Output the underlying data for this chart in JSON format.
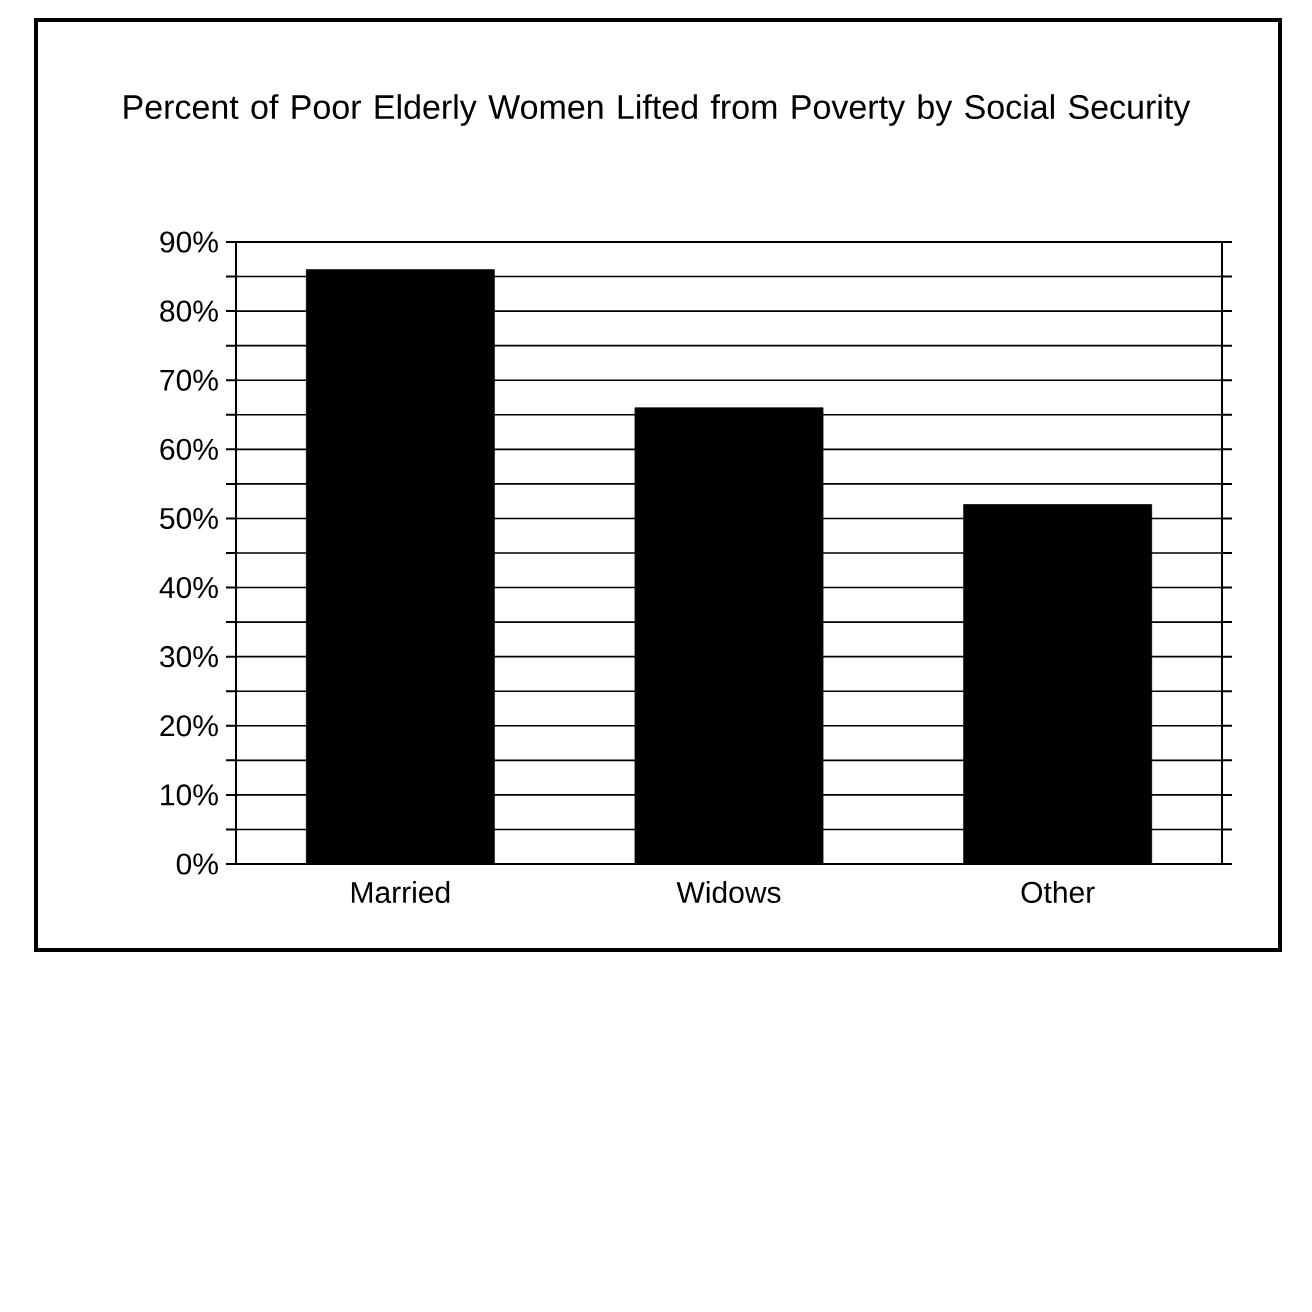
{
  "chart_data": {
    "type": "bar",
    "title": "Percent of Poor Elderly Women Lifted from Poverty by Social Security",
    "categories": [
      "Married",
      "Widows",
      "Other"
    ],
    "values": [
      86,
      66,
      52
    ],
    "color": "#000000",
    "ylim": [
      0,
      90
    ],
    "yticks": [
      {
        "value": 0,
        "label": "0%"
      },
      {
        "value": 5,
        "label": null
      },
      {
        "value": 10,
        "label": "10%"
      },
      {
        "value": 15,
        "label": null
      },
      {
        "value": 20,
        "label": "20%"
      },
      {
        "value": 25,
        "label": null
      },
      {
        "value": 30,
        "label": "30%"
      },
      {
        "value": 35,
        "label": null
      },
      {
        "value": 40,
        "label": "40%"
      },
      {
        "value": 45,
        "label": null
      },
      {
        "value": 50,
        "label": "50%"
      },
      {
        "value": 55,
        "label": null
      },
      {
        "value": 60,
        "label": "60%"
      },
      {
        "value": 65,
        "label": null
      },
      {
        "value": 70,
        "label": "70%"
      },
      {
        "value": 75,
        "label": null
      },
      {
        "value": 80,
        "label": "80%"
      },
      {
        "value": 85,
        "label": null
      },
      {
        "value": 90,
        "label": "90%"
      }
    ],
    "grid": true
  }
}
